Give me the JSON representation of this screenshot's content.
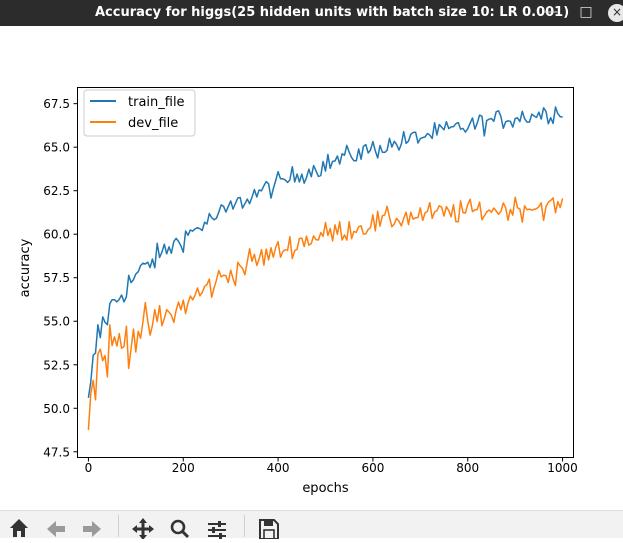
{
  "window": {
    "title": "Accuracy for higgs(25 hidden units with batch size 10: LR 0.001)",
    "minimize_glyph": "—",
    "maximize_glyph": "□",
    "close_glyph": "×"
  },
  "colors": {
    "train": "#1f77b4",
    "dev": "#ff7f0e",
    "titlebar": "#2c2c2c"
  },
  "toolbar": {
    "buttons": [
      {
        "icon": "home-icon"
      },
      {
        "icon": "back-arrow-icon"
      },
      {
        "icon": "forward-arrow-icon"
      },
      {
        "icon": "pan-icon"
      },
      {
        "icon": "zoom-icon"
      },
      {
        "icon": "subplots-config-icon"
      },
      {
        "icon": "save-icon"
      }
    ]
  },
  "chart_data": {
    "type": "line",
    "title": "",
    "xlabel": "epochs",
    "ylabel": "accuracy",
    "xlim": [
      -22,
      1022
    ],
    "ylim": [
      47.2,
      68.4
    ],
    "xticks": [
      0,
      200,
      400,
      600,
      800,
      1000
    ],
    "yticks": [
      47.5,
      50.0,
      52.5,
      55.0,
      57.5,
      60.0,
      62.5,
      65.0,
      67.5
    ],
    "xtick_labels": [
      "0",
      "200",
      "400",
      "600",
      "800",
      "1000"
    ],
    "ytick_labels": [
      "47.5",
      "50.0",
      "52.5",
      "55.0",
      "57.5",
      "60.0",
      "62.5",
      "65.0",
      "67.5"
    ],
    "grid": false,
    "legend_position": "upper-left",
    "sample_step": 5,
    "series": [
      {
        "name": "train_file",
        "color": "#1f77b4",
        "x": [
          0,
          5,
          10,
          15,
          20,
          30,
          40,
          60,
          80,
          100,
          120,
          150,
          180,
          200,
          250,
          300,
          350,
          400,
          450,
          500,
          550,
          600,
          650,
          700,
          750,
          800,
          850,
          900,
          950,
          975,
          1000
        ],
        "values": [
          49.8,
          51.0,
          52.3,
          53.4,
          54.0,
          54.8,
          55.4,
          56.3,
          57.0,
          57.6,
          58.1,
          58.8,
          59.4,
          59.8,
          60.7,
          61.5,
          62.3,
          62.9,
          63.5,
          64.0,
          64.5,
          64.9,
          65.2,
          65.6,
          65.9,
          66.2,
          66.5,
          66.7,
          66.9,
          67.0,
          67.1
        ]
      },
      {
        "name": "dev_file",
        "color": "#ff7f0e",
        "x": [
          0,
          5,
          10,
          15,
          20,
          30,
          40,
          60,
          80,
          100,
          120,
          150,
          180,
          200,
          250,
          300,
          350,
          400,
          450,
          500,
          550,
          600,
          650,
          700,
          750,
          800,
          850,
          900,
          950,
          975,
          1000
        ],
        "values": [
          49.0,
          50.3,
          51.3,
          52.0,
          52.5,
          53.0,
          53.3,
          53.7,
          54.0,
          54.3,
          54.6,
          55.0,
          55.5,
          55.9,
          56.9,
          57.8,
          58.5,
          59.0,
          59.6,
          60.0,
          60.3,
          60.6,
          60.9,
          61.1,
          61.2,
          61.3,
          61.4,
          61.5,
          61.6,
          61.6,
          61.6
        ]
      }
    ]
  }
}
